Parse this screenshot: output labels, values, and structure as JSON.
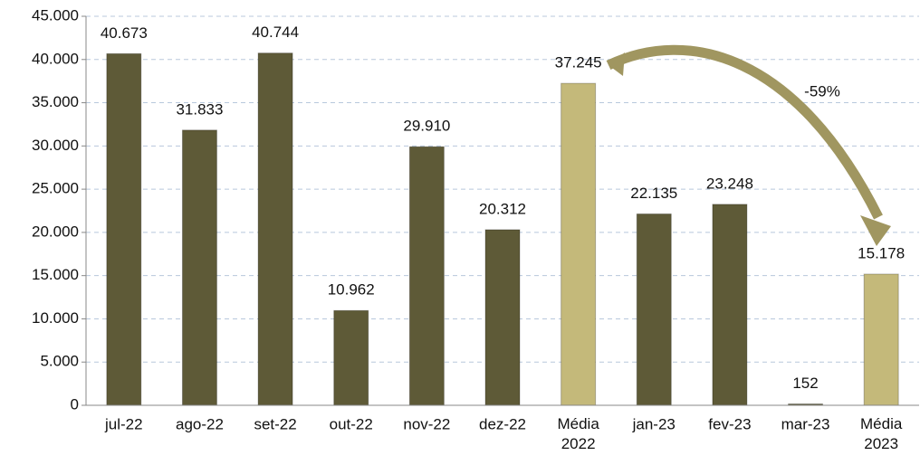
{
  "chart_data": {
    "type": "bar",
    "categories": [
      "jul-22",
      "ago-22",
      "set-22",
      "out-22",
      "nov-22",
      "dez-22",
      "Média 2022",
      "jan-23",
      "fev-23",
      "mar-23",
      "Média 2023"
    ],
    "values": [
      40673,
      31833,
      40744,
      10962,
      29910,
      20312,
      37245,
      22135,
      23248,
      152,
      15178
    ],
    "value_labels": [
      "40.673",
      "31.833",
      "40.744",
      "10.962",
      "29.910",
      "20.312",
      "37.245",
      "22.135",
      "23.248",
      "152",
      "15.178"
    ],
    "colors": [
      "#5e5a37",
      "#5e5a37",
      "#5e5a37",
      "#5e5a37",
      "#5e5a37",
      "#5e5a37",
      "#c4b97a",
      "#5e5a37",
      "#5e5a37",
      "#5e5a37",
      "#c4b97a"
    ],
    "ylim": [
      0,
      45000
    ],
    "yticks": [
      0,
      {
        "value": 5000,
        "label": "5.000"
      },
      {
        "value": 10000,
        "label": "10.000"
      },
      {
        "value": 15000,
        "label": "15.000"
      },
      {
        "value": 20000,
        "label": "20.000"
      },
      {
        "value": 25000,
        "label": "25.000"
      },
      {
        "value": 30000,
        "label": "30.000"
      },
      {
        "value": 35000,
        "label": "35.000"
      },
      {
        "value": 40000,
        "label": "40.000"
      },
      {
        "value": 45000,
        "label": "45.000"
      }
    ],
    "grid": true,
    "annotation": "-59%"
  }
}
